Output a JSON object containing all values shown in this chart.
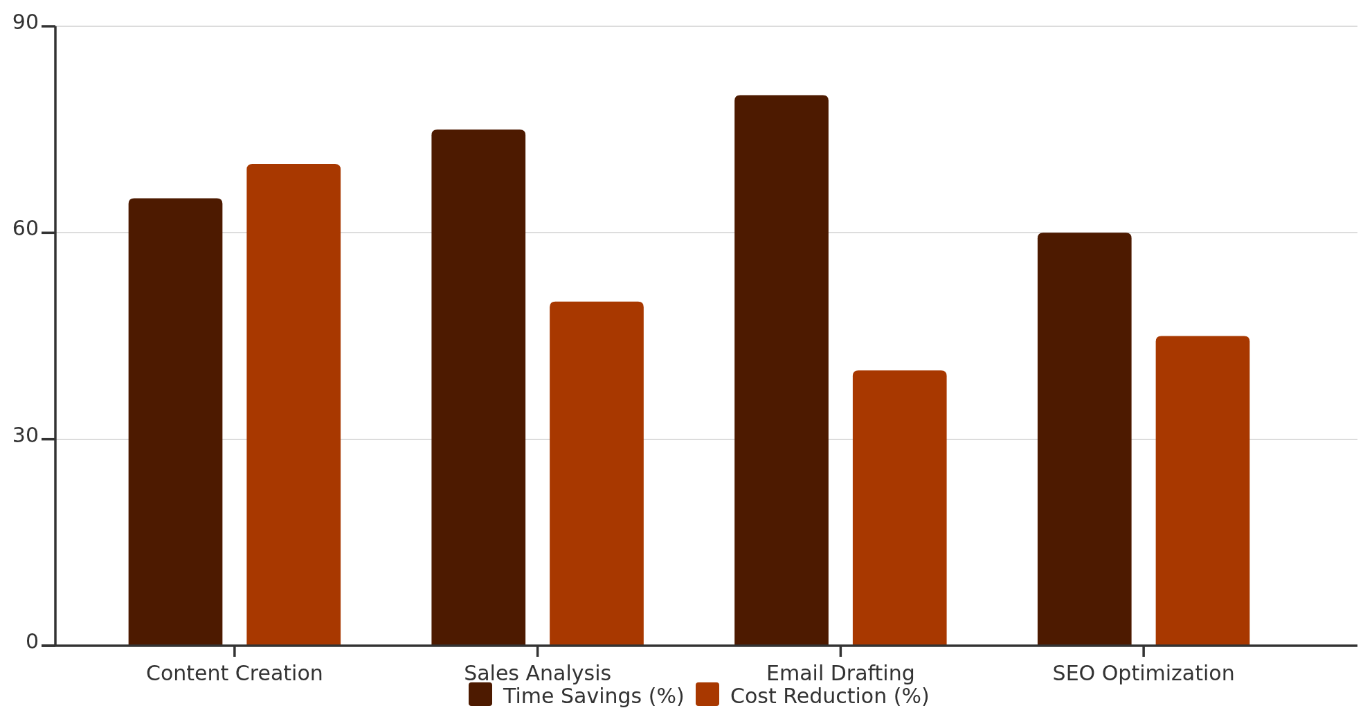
{
  "chart_data": {
    "type": "bar",
    "categories": [
      "Content Creation",
      "Sales Analysis",
      "Email Drafting",
      "SEO Optimization"
    ],
    "series": [
      {
        "name": "Time Savings (%)",
        "color": "#4d1a00",
        "values": [
          65,
          75,
          80,
          60
        ]
      },
      {
        "name": "Cost Reduction (%)",
        "color": "#a83800",
        "values": [
          70,
          50,
          40,
          45
        ]
      }
    ],
    "ylim": [
      0,
      90
    ],
    "yticks": [
      0,
      30,
      60,
      90
    ],
    "grid": "y",
    "legend": "bottom"
  }
}
